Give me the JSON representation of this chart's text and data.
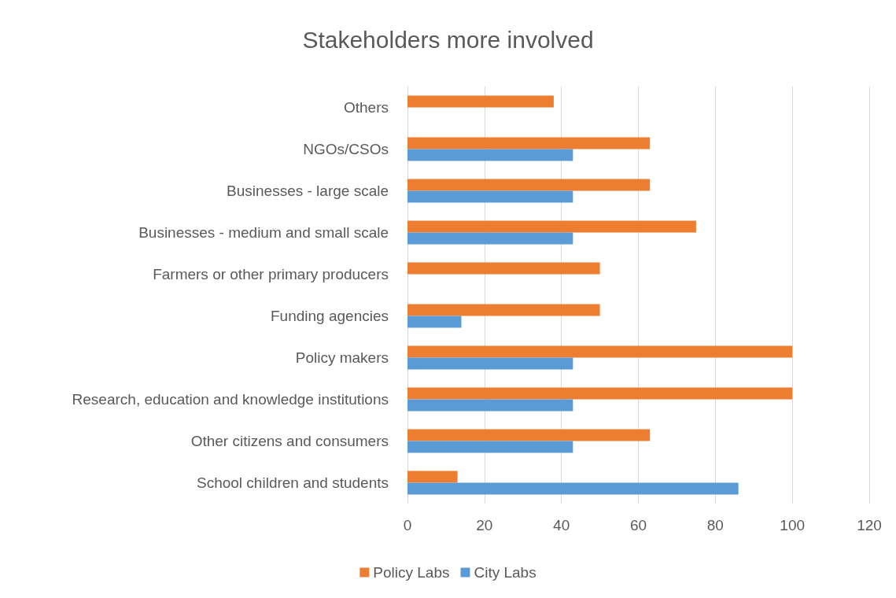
{
  "chart_data": {
    "type": "bar",
    "orientation": "horizontal",
    "title": "Stakeholders more involved",
    "categories": [
      "Others",
      "NGOs/CSOs",
      "Businesses - large scale",
      "Businesses - medium and small scale",
      "Farmers or other primary producers",
      "Funding agencies",
      "Policy makers",
      "Research, education and knowledge institutions",
      "Other citizens and consumers",
      "School children and students"
    ],
    "series": [
      {
        "name": "Policy Labs",
        "color": "#ed7d31",
        "values": [
          38,
          63,
          63,
          75,
          50,
          50,
          100,
          100,
          63,
          13
        ]
      },
      {
        "name": "City Labs",
        "color": "#5b9bd5",
        "values": [
          null,
          43,
          43,
          43,
          null,
          14,
          43,
          43,
          43,
          86
        ]
      }
    ],
    "xlim": [
      0,
      120
    ],
    "xticks": [
      0,
      20,
      40,
      60,
      80,
      100,
      120
    ],
    "grid": "x",
    "legend": "bottom"
  }
}
